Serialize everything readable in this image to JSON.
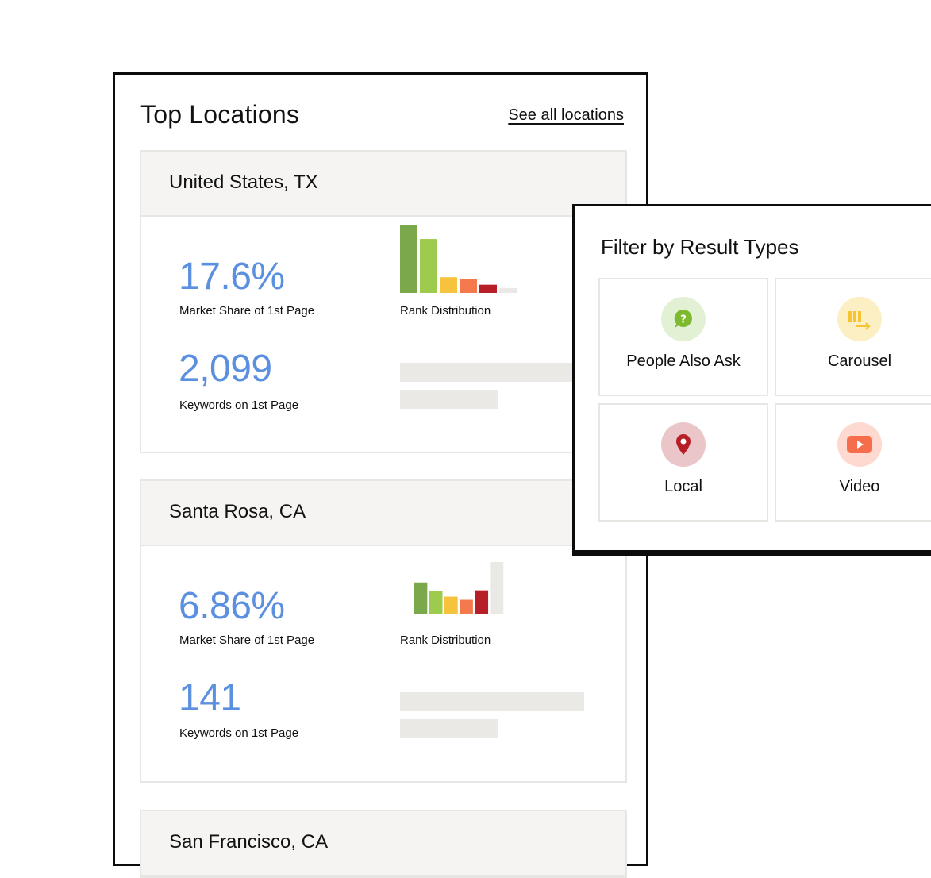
{
  "top_locations": {
    "title": "Top Locations",
    "see_all": "See all locations",
    "locations": [
      {
        "name": "United States, TX",
        "market_share": "17.6%",
        "market_share_label": "Market Share of 1st Page",
        "keywords": "2,099",
        "keywords_label": "Keywords on 1st Page",
        "rank_label": "Rank Distribution",
        "rank_distribution": [
          1.0,
          0.79,
          0.23,
          0.2,
          0.12,
          0.07
        ]
      },
      {
        "name": "Santa Rosa, CA",
        "market_share": "6.86%",
        "market_share_label": "Market Share of 1st Page",
        "keywords": "141",
        "keywords_label": "Keywords on 1st Page",
        "rank_label": "Rank Distribution",
        "rank_distribution": [
          0.61,
          0.44,
          0.34,
          0.28,
          0.46,
          1.0
        ]
      },
      {
        "name": "San Francisco, CA"
      }
    ],
    "rank_colors": [
      "#7aa84a",
      "#9ccb4e",
      "#f7c33d",
      "#f47a4e",
      "#b71f28",
      "#ebe9e6"
    ]
  },
  "filter": {
    "title": "Filter by Result Types",
    "types": [
      {
        "label": "People Also Ask",
        "icon": "question-bubble-icon",
        "bg": "#e2f0d4",
        "fg": "#7dba2f"
      },
      {
        "label": "Carousel",
        "icon": "carousel-icon",
        "bg": "#fcefc4",
        "fg": "#f6c331"
      },
      {
        "label": "Local",
        "icon": "map-pin-icon",
        "bg": "#ebc6c9",
        "fg": "#b71f28"
      },
      {
        "label": "Video",
        "icon": "video-play-icon",
        "bg": "#fdd9cf",
        "fg": "#f56d4a"
      }
    ]
  }
}
